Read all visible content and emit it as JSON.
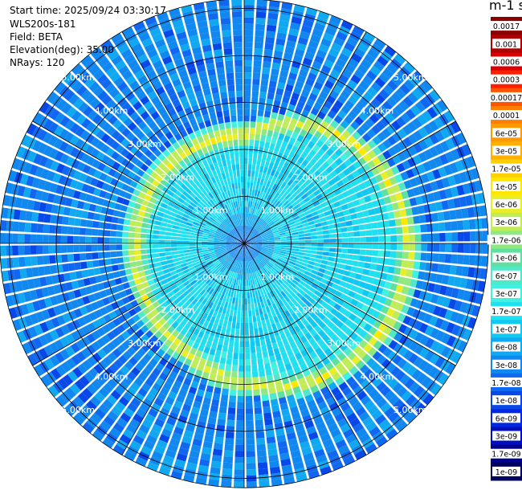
{
  "header": {
    "start_time": "Start time: 2025/09/24 03:30:17",
    "instrument": "WLS200s-181",
    "field": "Field: BETA",
    "elevation": "Elevation(deg): 35.00",
    "nrays": "NRays: 120"
  },
  "colorbar": {
    "title": "m-1 sr-1",
    "labels": [
      "0.0017",
      "0.001",
      "0.0006",
      "0.0003",
      "0.00017",
      "0.0001",
      "6e-05",
      "3e-05",
      "1.7e-05",
      "1e-05",
      "6e-06",
      "3e-06",
      "1.7e-06",
      "1e-06",
      "6e-07",
      "3e-07",
      "1.7e-07",
      "1e-07",
      "6e-08",
      "3e-08",
      "1.7e-08",
      "1e-08",
      "6e-09",
      "3e-09",
      "1.7e-09",
      "1e-09"
    ],
    "colors": [
      "#8b0000",
      "#b00000",
      "#d80000",
      "#ff2000",
      "#ff5500",
      "#ff8000",
      "#ff9a00",
      "#ffb000",
      "#ffd000",
      "#ffe800",
      "#e8ef28",
      "#c0ec58",
      "#90e880",
      "#60e0a0",
      "#50e8c8",
      "#40f0e0",
      "#20e0f0",
      "#10c8f0",
      "#10a8f0",
      "#1088f0",
      "#1068f0",
      "#0848e8",
      "#0028e0",
      "#0010c0",
      "#000090",
      "#000060"
    ]
  },
  "chart_data": {
    "type": "polar_ppi",
    "field": "BETA",
    "units": "m-1 sr-1",
    "elevation_deg": 35.0,
    "nrays": 120,
    "range_rings_km": [
      1,
      2,
      3,
      4,
      5
    ],
    "ring_labels": [
      "1.00km",
      "2.00km",
      "3.00km",
      "4.00km",
      "5.00km"
    ],
    "max_range_km": 5.2,
    "sector_lines_deg": [
      0,
      30,
      60,
      90,
      120,
      150,
      180,
      210,
      240,
      270,
      300,
      330
    ],
    "azimuth_profile_deg": [
      0,
      30,
      60,
      90,
      120,
      150,
      180,
      210,
      240,
      270,
      300,
      330
    ],
    "layer_range_km": [
      2.3,
      2.9,
      3.3,
      3.5,
      3.5,
      3.3,
      3.0,
      2.6,
      2.4,
      2.3,
      2.3,
      2.3
    ],
    "layer_peak_value": "1e-05",
    "near_field_value": "1.7e-08",
    "inner_background_value": "1e-07",
    "outer_background_value": "3e-08"
  }
}
